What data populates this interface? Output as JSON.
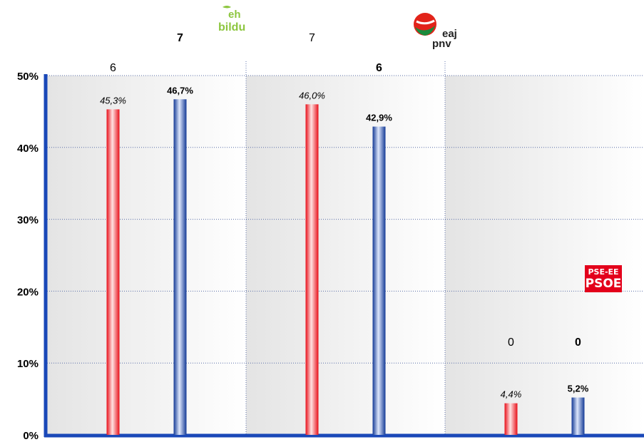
{
  "chart_data": {
    "type": "bar",
    "ylim": [
      0,
      50
    ],
    "y_ticks": [
      "0%",
      "10%",
      "20%",
      "30%",
      "40%",
      "50%"
    ],
    "grid": true,
    "groups": [
      {
        "party": "EH Bildu",
        "seats": [
          "6",
          "7"
        ],
        "bars": [
          {
            "value": 45.3,
            "label": "45,3%",
            "color": "red"
          },
          {
            "value": 46.7,
            "label": "46,7%",
            "color": "blue"
          }
        ]
      },
      {
        "party": "EAJ-PNV",
        "seats": [
          "7",
          "6"
        ],
        "bars": [
          {
            "value": 46.0,
            "label": "46,0%",
            "color": "red"
          },
          {
            "value": 42.9,
            "label": "42,9%",
            "color": "blue"
          }
        ]
      },
      {
        "party": "PSE-EE PSOE",
        "seats": [
          "0",
          "0"
        ],
        "bars": [
          {
            "value": 4.4,
            "label": "4,4%",
            "color": "red"
          },
          {
            "value": 5.2,
            "label": "5,2%",
            "color": "blue"
          }
        ]
      }
    ]
  },
  "logos": {
    "bildu": {
      "line1": "eh",
      "line2": "bildu",
      "color": "#8dc63f"
    },
    "pnv": {
      "line1": "eaj",
      "line2": "pnv",
      "red": "#e2231a",
      "green": "#1a8a3c"
    },
    "psoe": {
      "line1": "PSE-EE",
      "line2": "PSOE",
      "color": "#e3001b"
    }
  }
}
